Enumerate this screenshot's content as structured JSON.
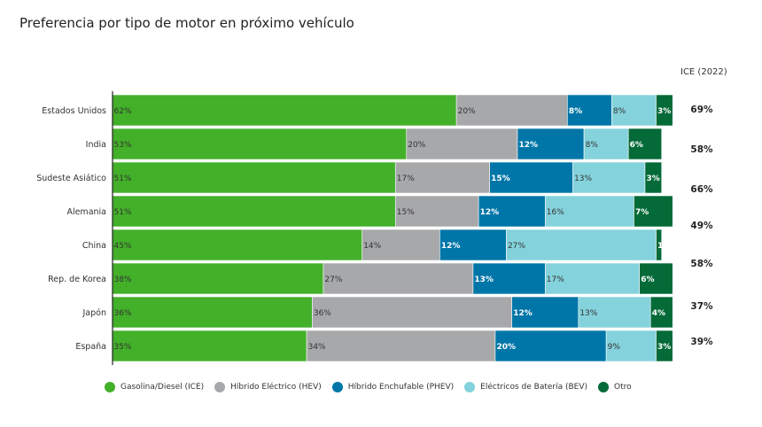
{
  "chart_data": {
    "type": "bar",
    "orientation": "horizontal",
    "stacked": true,
    "title": "Preferencia por tipo de motor en próximo vehículo",
    "categories": [
      "Estados Unidos",
      "India",
      "Sudeste Asiático",
      "Alemania",
      "China",
      "Rep. de Korea",
      "Japón",
      "España"
    ],
    "series": [
      {
        "name": "Gasolina/Diesel (ICE)",
        "color": "#43b02a",
        "values": [
          62,
          53,
          51,
          51,
          45,
          38,
          36,
          35
        ]
      },
      {
        "name": "Híbrido Eléctrico (HEV)",
        "color": "#a7a8aa",
        "values": [
          20,
          20,
          17,
          15,
          14,
          27,
          36,
          34
        ]
      },
      {
        "name": "Híbrido Enchufable (PHEV)",
        "color": "#0076a8",
        "values": [
          8,
          12,
          15,
          12,
          12,
          13,
          12,
          20
        ]
      },
      {
        "name": "Eléctricos de Batería (BEV)",
        "color": "#84d2dc",
        "values": [
          8,
          8,
          13,
          16,
          27,
          17,
          13,
          9
        ]
      },
      {
        "name": "Otro",
        "color": "#046a38",
        "values": [
          3,
          6,
          3,
          7,
          1,
          6,
          4,
          3
        ]
      }
    ],
    "data_labels": [
      [
        "62%",
        "20%",
        "8%",
        "8%",
        "3%"
      ],
      [
        "53%",
        "20%",
        "12%",
        "8%",
        "6%"
      ],
      [
        "51%",
        "17%",
        "15%",
        "13%",
        "3%"
      ],
      [
        "51%",
        "15%",
        "12%",
        "16%",
        "7%"
      ],
      [
        "45%",
        "14%",
        "12%",
        "27%",
        "1"
      ],
      [
        "38%",
        "27%",
        "13%",
        "17%",
        "6%"
      ],
      [
        "36%",
        "36%",
        "12%",
        "13%",
        "4%"
      ],
      [
        "35%",
        "34%",
        "20%",
        "9%",
        "3%"
      ]
    ],
    "side_column": {
      "header": "ICE (2022)",
      "values": [
        "69%",
        "58%",
        "66%",
        "49%",
        "58%",
        "37%",
        "39%"
      ]
    },
    "legend_position": "bottom",
    "grid": false
  }
}
